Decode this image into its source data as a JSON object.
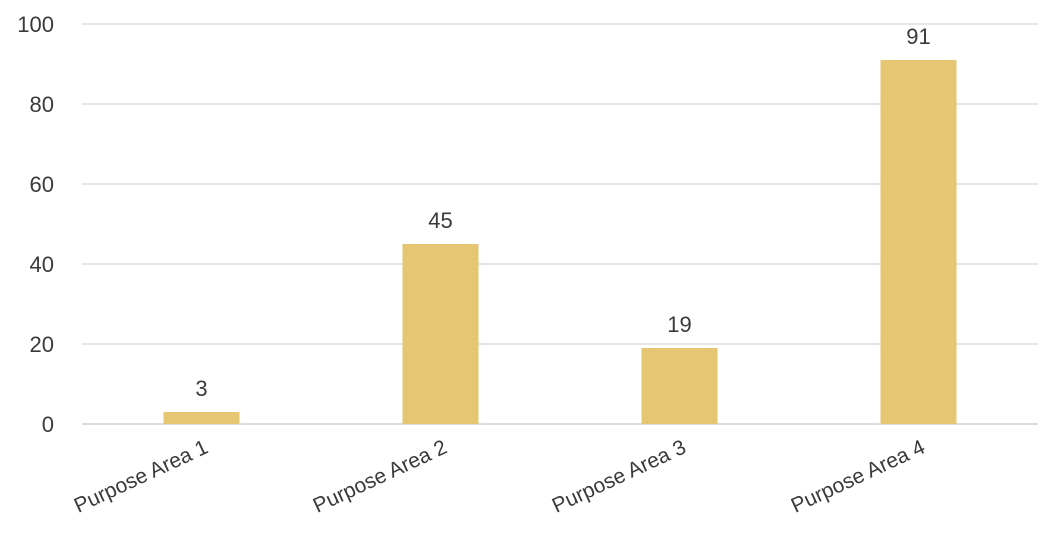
{
  "chart_data": {
    "type": "bar",
    "title": "",
    "xlabel": "",
    "ylabel": "",
    "categories": [
      "Purpose Area 1",
      "Purpose Area 2",
      "Purpose Area 3",
      "Purpose Area 4"
    ],
    "values": [
      3,
      45,
      19,
      91
    ],
    "data_labels": [
      "3",
      "45",
      "19",
      "91"
    ],
    "ylim": [
      0,
      100
    ],
    "yticks": [
      0,
      20,
      40,
      60,
      80,
      100
    ],
    "ytick_labels": [
      "0",
      "20",
      "40",
      "60",
      "80",
      "100"
    ],
    "grid": true,
    "legend": "none",
    "bar_color": "#E5C672",
    "gridline_color": "#DEDEDE",
    "text_color": "#3A3A3A"
  }
}
